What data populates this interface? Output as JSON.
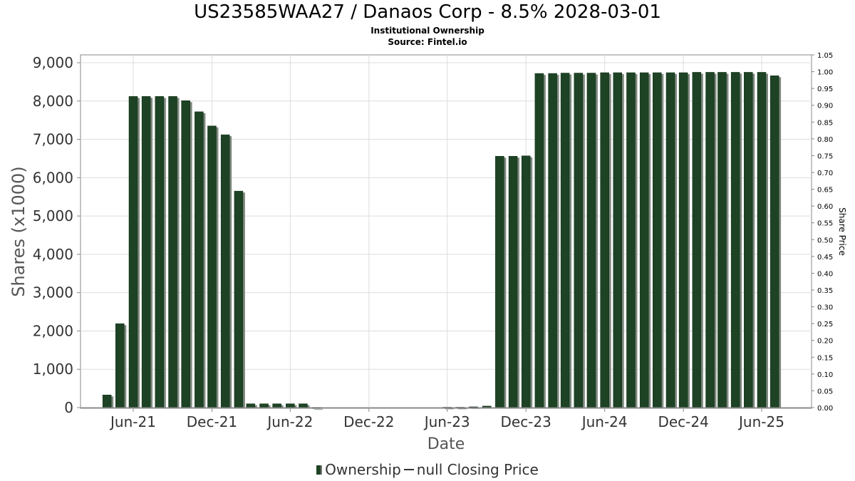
{
  "title": "US23585WAA27 / Danaos Corp - 8.5% 2028-03-01",
  "subtitle": "Institutional Ownership",
  "source": "Source: Fintel.io",
  "legend": {
    "ownership": "Ownership",
    "closing_price": "null Closing Price"
  },
  "colors": {
    "bar": "#1d4324",
    "bar_shadow": "#7f8a80",
    "grid": "#dddddd"
  },
  "chart_data": {
    "type": "bar",
    "title": "US23585WAA27 / Danaos Corp - 8.5% 2028-03-01",
    "xlabel": "Date",
    "ylabel": "Shares (x1000)",
    "y2label": "Share Price",
    "ylim": [
      0,
      9200
    ],
    "y2lim": [
      0,
      1.05
    ],
    "grid": true,
    "legend_position": "bottom",
    "yticks": [
      "0",
      "1,000",
      "2,000",
      "3,000",
      "4,000",
      "5,000",
      "6,000",
      "7,000",
      "8,000",
      "9,000"
    ],
    "y2ticks": [
      "0.00",
      "0.05",
      "0.10",
      "0.15",
      "0.20",
      "0.25",
      "0.30",
      "0.35",
      "0.40",
      "0.45",
      "0.50",
      "0.55",
      "0.60",
      "0.65",
      "0.70",
      "0.75",
      "0.80",
      "0.85",
      "0.90",
      "0.95",
      "1.00",
      "1.05"
    ],
    "xticks": [
      "Jun-21",
      "Dec-21",
      "Jun-22",
      "Dec-22",
      "Jun-23",
      "Dec-23",
      "Jun-24",
      "Dec-24",
      "Jun-25"
    ],
    "x_start": "2021-01-01",
    "x_end": "2025-12-31",
    "series": [
      {
        "name": "Ownership",
        "x": [
          "2021-04-01",
          "2021-05-01",
          "2021-06-01",
          "2021-07-01",
          "2021-08-01",
          "2021-09-01",
          "2021-10-01",
          "2021-11-01",
          "2021-12-01",
          "2022-01-01",
          "2022-02-01",
          "2022-03-01",
          "2022-04-01",
          "2022-05-01",
          "2022-06-01",
          "2022-07-01",
          "2022-08-01",
          "2023-06-01",
          "2023-07-01",
          "2023-08-01",
          "2023-09-01",
          "2023-10-01",
          "2023-11-01",
          "2023-12-01",
          "2024-01-01",
          "2024-02-01",
          "2024-03-01",
          "2024-04-01",
          "2024-05-01",
          "2024-06-01",
          "2024-07-01",
          "2024-08-01",
          "2024-09-01",
          "2024-10-01",
          "2024-11-01",
          "2024-12-01",
          "2025-01-01",
          "2025-02-01",
          "2025-03-01",
          "2025-04-01",
          "2025-05-01",
          "2025-06-01",
          "2025-07-01"
        ],
        "values": [
          330,
          2190,
          8120,
          8120,
          8120,
          8120,
          8010,
          7720,
          7350,
          7120,
          5650,
          100,
          100,
          100,
          100,
          100,
          0,
          10,
          10,
          20,
          40,
          6560,
          6560,
          6570,
          8720,
          8720,
          8730,
          8730,
          8730,
          8740,
          8740,
          8740,
          8740,
          8740,
          8740,
          8740,
          8750,
          8750,
          8750,
          8750,
          8750,
          8750,
          8660
        ]
      },
      {
        "name": "null Closing Price",
        "values": []
      }
    ]
  }
}
